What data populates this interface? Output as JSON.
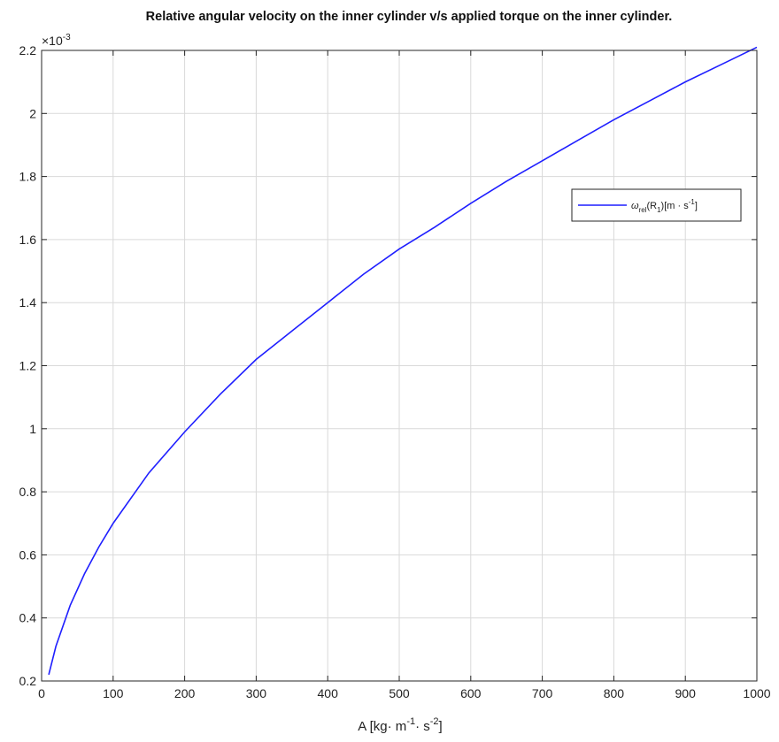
{
  "chart_data": {
    "type": "line",
    "title": "Relative angular velocity on the inner cylinder v/s applied torque on the inner cylinder.",
    "xlabel": {
      "base": "A [kg",
      "sep1": "· m",
      "exp1": "-1",
      "sep2": "· s",
      "exp2": "-2",
      "end": "]"
    },
    "ylabel": "",
    "y_multiplier": {
      "base": "×10",
      "exp": "-3"
    },
    "xlim": [
      0,
      1000
    ],
    "ylim": [
      0.2,
      2.2
    ],
    "x_ticks": [
      "0",
      "100",
      "200",
      "300",
      "400",
      "500",
      "600",
      "700",
      "800",
      "900",
      "1000"
    ],
    "y_ticks": [
      "0.2",
      "0.4",
      "0.6",
      "0.8",
      "1",
      "1.2",
      "1.4",
      "1.6",
      "1.8",
      "2",
      "2.2"
    ],
    "grid": true,
    "legend_position": "top-right",
    "colors": {
      "series": "#1f1fff",
      "axes": "#262626",
      "grid": "#d9d9d9"
    },
    "series": [
      {
        "legend": {
          "omega": "ω",
          "sub1": "rel",
          "mid": "(R",
          "sub2": "1",
          "tail": ")[m · s",
          "exp": "-1",
          "end": "]"
        },
        "x": [
          10,
          20,
          40,
          60,
          80,
          100,
          150,
          200,
          250,
          300,
          350,
          400,
          450,
          500,
          550,
          600,
          650,
          700,
          750,
          800,
          850,
          900,
          950,
          1000
        ],
        "y": [
          0.22,
          0.31,
          0.44,
          0.54,
          0.625,
          0.7,
          0.86,
          0.99,
          1.11,
          1.22,
          1.31,
          1.4,
          1.49,
          1.57,
          1.64,
          1.715,
          1.785,
          1.85,
          1.915,
          1.98,
          2.04,
          2.1,
          2.155,
          2.21
        ]
      }
    ]
  }
}
